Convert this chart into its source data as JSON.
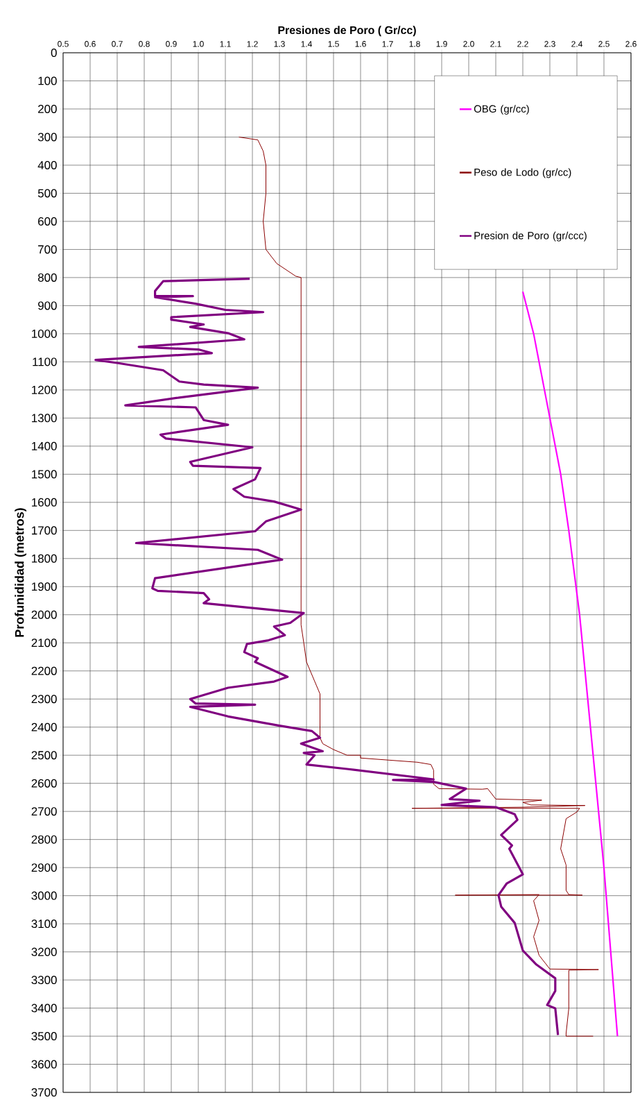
{
  "chart_data": {
    "type": "line",
    "xlabel": "Presiones de Poro ( Gr/cc)",
    "ylabel": "Profunididad (metros)",
    "xlim": [
      0.5,
      2.6
    ],
    "xticks": [
      0.5,
      0.6,
      0.7,
      0.8,
      0.9,
      {
        "value": 1.0,
        "label": "1.0"
      },
      1.1,
      1.2,
      1.3,
      1.4,
      1.5,
      1.6,
      1.7,
      1.8,
      1.9,
      {
        "value": 2.0,
        "label": "2.0"
      },
      2.1,
      2.2,
      2.3,
      2.4,
      2.5,
      2.6
    ],
    "ylim": [
      3700,
      0
    ],
    "yticks": [
      0,
      100,
      200,
      300,
      400,
      500,
      600,
      700,
      800,
      900,
      1000,
      1100,
      1200,
      1300,
      1400,
      1500,
      1600,
      1700,
      1800,
      1900,
      2000,
      2100,
      2200,
      2300,
      2400,
      2500,
      2600,
      2700,
      2800,
      2900,
      3000,
      3100,
      3200,
      3300,
      3400,
      3500,
      3600,
      3700
    ],
    "grid": true,
    "legend": "top right",
    "series": [
      {
        "name": "OBG (gr/cc)",
        "color": "#ff00ff",
        "x": [
          2.2,
          2.24,
          2.28,
          2.3,
          2.34,
          2.37,
          2.41,
          2.44,
          2.47,
          2.5,
          2.525,
          2.55
        ],
        "values": [
          850,
          1000,
          1200,
          1300,
          1500,
          1700,
          2000,
          2300,
          2600,
          2900,
          3200,
          3500
        ]
      },
      {
        "name": "Peso de Lodo (gr/cc)",
        "color": "#8b0000",
        "x": [
          1.15,
          1.22,
          1.24,
          1.25,
          1.25,
          1.24,
          1.25,
          1.29,
          1.36,
          1.38,
          1.38,
          1.39,
          1.4,
          1.45,
          1.45,
          1.46,
          1.5,
          1.55,
          1.6,
          1.6,
          1.81,
          1.86,
          1.87,
          1.87,
          1.89,
          2.05,
          2.07,
          2.1,
          2.27,
          2.2,
          2.23,
          2.43,
          2.2,
          1.79,
          2.41,
          2.4,
          2.36,
          2.34,
          2.36,
          2.36,
          2.37,
          2.42,
          1.95,
          2.26,
          2.24,
          2.26,
          2.24,
          2.26,
          2.3,
          2.48,
          2.37,
          2.37,
          2.36,
          2.36,
          2.46
        ],
        "values": [
          300,
          310,
          350,
          400,
          500,
          600,
          700,
          750,
          795,
          800,
          2036,
          2100,
          2168,
          2282,
          2438,
          2459,
          2480,
          2500,
          2500,
          2510,
          2525,
          2533,
          2553,
          2603,
          2619,
          2621,
          2619,
          2656,
          2660,
          2668,
          2677,
          2679,
          2685,
          2689,
          2689,
          2702,
          2726,
          2833,
          2891,
          2981,
          2996,
          2998,
          2998,
          2996,
          3018,
          3088,
          3146,
          3212,
          3261,
          3263,
          3265,
          3401,
          3490,
          3500,
          3500
        ]
      },
      {
        "name": "Presion de Poro (gr/ccc)",
        "color": "#800080",
        "x": [
          1.19,
          0.87,
          0.84,
          0.84,
          0.98,
          0.84,
          0.99,
          1.1,
          1.24,
          0.9,
          0.9,
          1.02,
          0.97,
          1.11,
          1.17,
          0.78,
          1.0,
          1.05,
          0.62,
          0.7,
          0.87,
          0.93,
          1.02,
          1.22,
          0.93,
          0.73,
          0.99,
          1.02,
          1.11,
          0.86,
          0.88,
          1.2,
          0.97,
          0.98,
          1.23,
          1.21,
          1.13,
          1.17,
          1.28,
          1.38,
          1.25,
          1.21,
          0.77,
          1.22,
          1.31,
          0.84,
          0.83,
          0.85,
          1.02,
          1.04,
          1.02,
          1.39,
          1.34,
          1.28,
          1.32,
          1.26,
          1.18,
          1.17,
          1.22,
          1.21,
          1.33,
          1.28,
          1.11,
          0.97,
          0.99,
          1.21,
          0.97,
          1.11,
          1.3,
          1.42,
          1.45,
          1.38,
          1.46,
          1.39,
          1.43,
          1.4,
          1.55,
          1.87,
          1.72,
          1.87,
          1.99,
          1.93,
          2.04,
          1.9,
          2.1,
          2.17,
          2.18,
          2.12,
          2.16,
          2.15,
          2.2,
          2.14,
          2.11,
          2.12,
          2.17,
          2.2,
          2.25,
          2.32,
          2.32,
          2.29,
          2.32,
          2.33
        ],
        "values": [
          804,
          813,
          848,
          866,
          866,
          870,
          893,
          915,
          923,
          941,
          950,
          967,
          976,
          998,
          1020,
          1047,
          1056,
          1069,
          1093,
          1104,
          1130,
          1170,
          1181,
          1192,
          1227,
          1255,
          1262,
          1307,
          1324,
          1359,
          1373,
          1404,
          1456,
          1470,
          1478,
          1518,
          1553,
          1580,
          1597,
          1626,
          1668,
          1703,
          1745,
          1769,
          1804,
          1870,
          1906,
          1915,
          1923,
          1945,
          1959,
          1994,
          2029,
          2042,
          2073,
          2091,
          2104,
          2133,
          2155,
          2168,
          2221,
          2238,
          2260,
          2300,
          2316,
          2320,
          2328,
          2362,
          2395,
          2414,
          2438,
          2459,
          2486,
          2492,
          2500,
          2533,
          2549,
          2586,
          2588,
          2595,
          2619,
          2656,
          2662,
          2677,
          2685,
          2710,
          2730,
          2784,
          2821,
          2833,
          2924,
          2957,
          2998,
          3039,
          3097,
          3195,
          3245,
          3294,
          3339,
          3389,
          3401,
          3496
        ]
      }
    ]
  }
}
